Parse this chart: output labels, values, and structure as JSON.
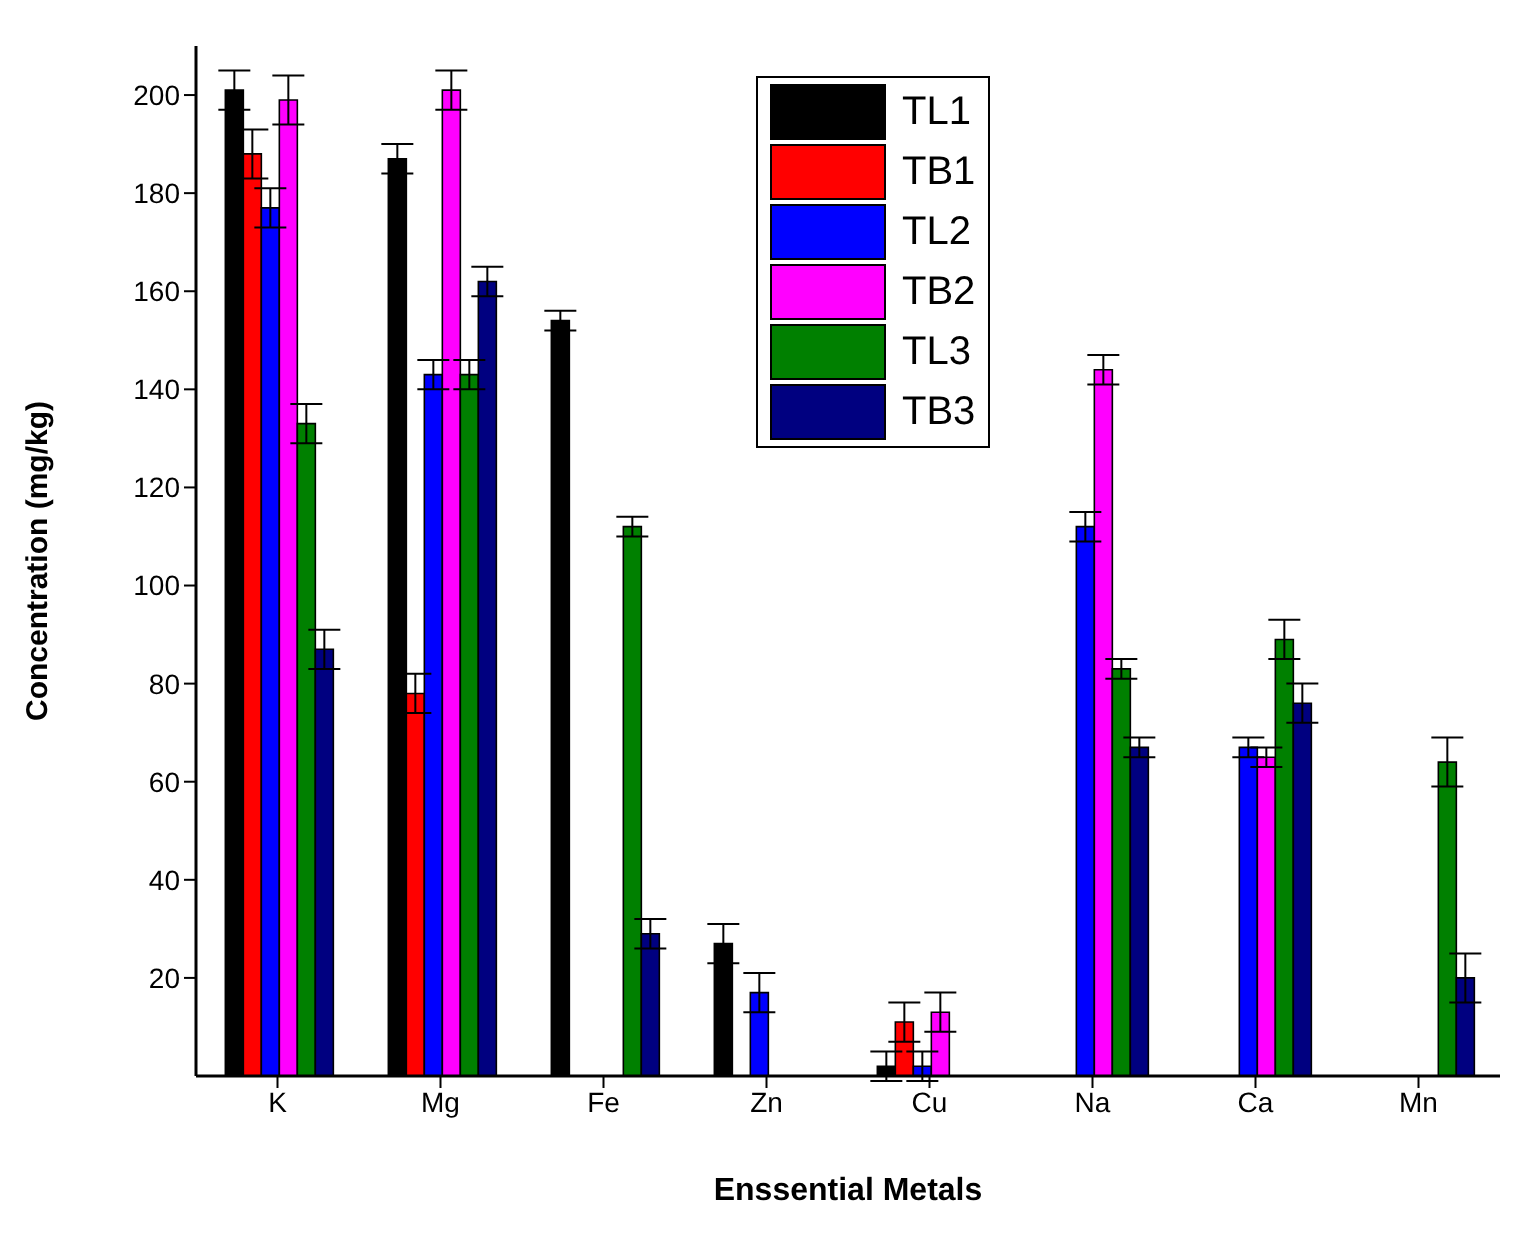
{
  "chart_data": {
    "type": "bar",
    "xlabel": "Enssential Metals",
    "ylabel": "Concentration (mg/kg)",
    "categories": [
      "K",
      "Mg",
      "Fe",
      "Zn",
      "Cu",
      "Na",
      "Ca",
      "Mn"
    ],
    "series": [
      {
        "name": "TL1",
        "color": "#000000",
        "values": [
          201,
          187,
          154,
          27,
          2,
          null,
          null,
          null
        ],
        "errors": [
          4,
          3,
          2,
          4,
          3,
          null,
          null,
          null
        ]
      },
      {
        "name": "TB1",
        "color": "#ff0000",
        "values": [
          188,
          78,
          null,
          null,
          11,
          null,
          null,
          null
        ],
        "errors": [
          5,
          4,
          null,
          null,
          4,
          null,
          null,
          null
        ]
      },
      {
        "name": "TL2",
        "color": "#0000ff",
        "values": [
          177,
          143,
          null,
          17,
          2,
          112,
          67,
          null
        ],
        "errors": [
          4,
          3,
          null,
          4,
          3,
          3,
          2,
          null
        ]
      },
      {
        "name": "TB2",
        "color": "#ff00ff",
        "values": [
          199,
          201,
          null,
          null,
          13,
          144,
          65,
          null
        ],
        "errors": [
          5,
          4,
          null,
          null,
          4,
          3,
          2,
          null
        ]
      },
      {
        "name": "TL3",
        "color": "#008000",
        "values": [
          133,
          143,
          112,
          null,
          null,
          83,
          89,
          64
        ],
        "errors": [
          4,
          3,
          2,
          null,
          null,
          2,
          4,
          5
        ]
      },
      {
        "name": "TB3",
        "color": "#000080",
        "values": [
          87,
          162,
          29,
          null,
          null,
          67,
          76,
          20
        ],
        "errors": [
          4,
          3,
          3,
          null,
          null,
          2,
          4,
          5
        ]
      }
    ],
    "ylim": [
      0,
      210
    ],
    "yticks": [
      20,
      40,
      60,
      80,
      100,
      120,
      140,
      160,
      180,
      200
    ],
    "legend": "top"
  }
}
